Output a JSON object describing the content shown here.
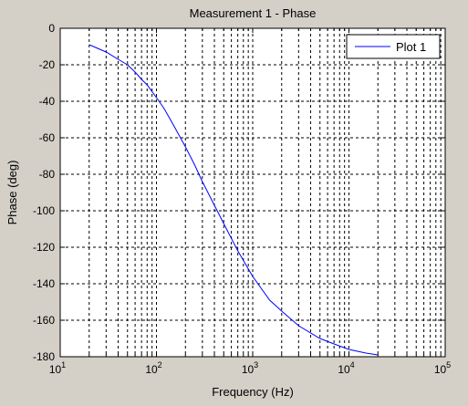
{
  "chart_data": {
    "type": "line",
    "title": "Measurement 1 - Phase",
    "xlabel": "Frequency (Hz)",
    "ylabel": "Phase (deg)",
    "xscale": "log",
    "xlim": [
      10,
      100000
    ],
    "ylim": [
      -180,
      0
    ],
    "x_tick_labels": [
      {
        "base": "10",
        "exp": "1"
      },
      {
        "base": "10",
        "exp": "2"
      },
      {
        "base": "10",
        "exp": "3"
      },
      {
        "base": "10",
        "exp": "4"
      },
      {
        "base": "10",
        "exp": "5"
      }
    ],
    "y_ticks": [
      0,
      -20,
      -40,
      -60,
      -80,
      -100,
      -120,
      -140,
      -160,
      -180
    ],
    "y_tick_labels": [
      "0",
      "-20",
      "-40",
      "-60",
      "-80",
      "-100",
      "-120",
      "-140",
      "-160",
      "-180"
    ],
    "grid": true,
    "legend": "top-right",
    "series": [
      {
        "name": "Plot 1",
        "color": "#0000ff",
        "x": [
          20,
          30,
          40,
          50,
          60,
          70,
          80,
          100,
          120,
          150,
          200,
          250,
          300,
          400,
          500,
          700,
          1000,
          1500,
          2000,
          3000,
          5000,
          7000,
          10000,
          15000,
          20000
        ],
        "y": [
          -9,
          -13,
          -17,
          -20,
          -24,
          -28,
          -31,
          -38,
          -44,
          -53,
          -65,
          -75,
          -84,
          -97,
          -107,
          -122,
          -136,
          -149,
          -155,
          -163,
          -170,
          -173,
          -176,
          -178,
          -179
        ]
      }
    ]
  }
}
